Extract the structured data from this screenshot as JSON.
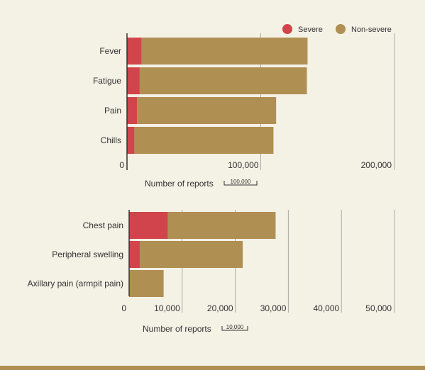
{
  "legend": {
    "severe_label": "Severe",
    "nonsevere_label": "Non-severe"
  },
  "colors": {
    "severe": "#d1444b",
    "nonsevere": "#b08f52",
    "grid": "#aaaaaa",
    "axis": "#333333",
    "background": "#f4f1e5"
  },
  "chart_data": [
    {
      "type": "bar",
      "orientation": "horizontal",
      "stacked": true,
      "categories": [
        "Fever",
        "Fatigue",
        "Pain",
        "Chills"
      ],
      "series": [
        {
          "name": "Severe",
          "values": [
            11000,
            9500,
            7500,
            5500
          ]
        },
        {
          "name": "Non-severe",
          "values": [
            124000,
            125000,
            104000,
            104000
          ]
        }
      ],
      "xlabel": "Number of reports",
      "xlim": [
        0,
        200000
      ],
      "xticks": [
        0,
        100000,
        200000
      ],
      "xtick_labels": [
        "0",
        "100,000",
        "200,000"
      ],
      "scale_label": "100,000",
      "grid": true,
      "legend_position": "top-right"
    },
    {
      "type": "bar",
      "orientation": "horizontal",
      "stacked": true,
      "categories": [
        "Chest pain",
        "Peripheral swelling",
        "Axillary pain (armpit pain)"
      ],
      "series": [
        {
          "name": "Severe",
          "values": [
            7300,
            2000,
            100
          ]
        },
        {
          "name": "Non-severe",
          "values": [
            20300,
            19400,
            6400
          ]
        }
      ],
      "xlabel": "Number of reports",
      "xlim": [
        0,
        50000
      ],
      "xticks": [
        0,
        10000,
        20000,
        30000,
        40000,
        50000
      ],
      "xtick_labels": [
        "0",
        "10,000",
        "20,000",
        "30,000",
        "40,000",
        "50,000"
      ],
      "scale_label": "10,000",
      "grid": true
    }
  ]
}
